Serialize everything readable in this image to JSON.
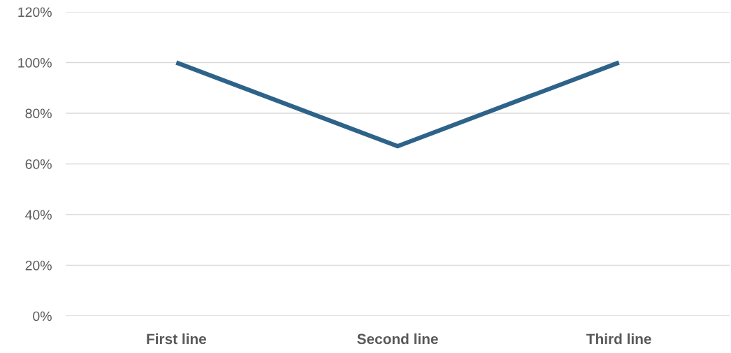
{
  "chart_data": {
    "type": "line",
    "categories": [
      "First line",
      "Second line",
      "Third line"
    ],
    "series": [
      {
        "color": "#2e6389",
        "values": [
          100,
          67,
          100
        ]
      }
    ],
    "ylim": [
      0,
      120
    ],
    "yticks": [
      {
        "value": 0,
        "label": "0%"
      },
      {
        "value": 20,
        "label": "20%"
      },
      {
        "value": 40,
        "label": "40%"
      },
      {
        "value": 60,
        "label": "60%"
      },
      {
        "value": 80,
        "label": "80%"
      },
      {
        "value": 100,
        "label": "100%"
      },
      {
        "value": 120,
        "label": "120%"
      }
    ],
    "grid": "y",
    "marker": "none",
    "line_style": "solid"
  }
}
